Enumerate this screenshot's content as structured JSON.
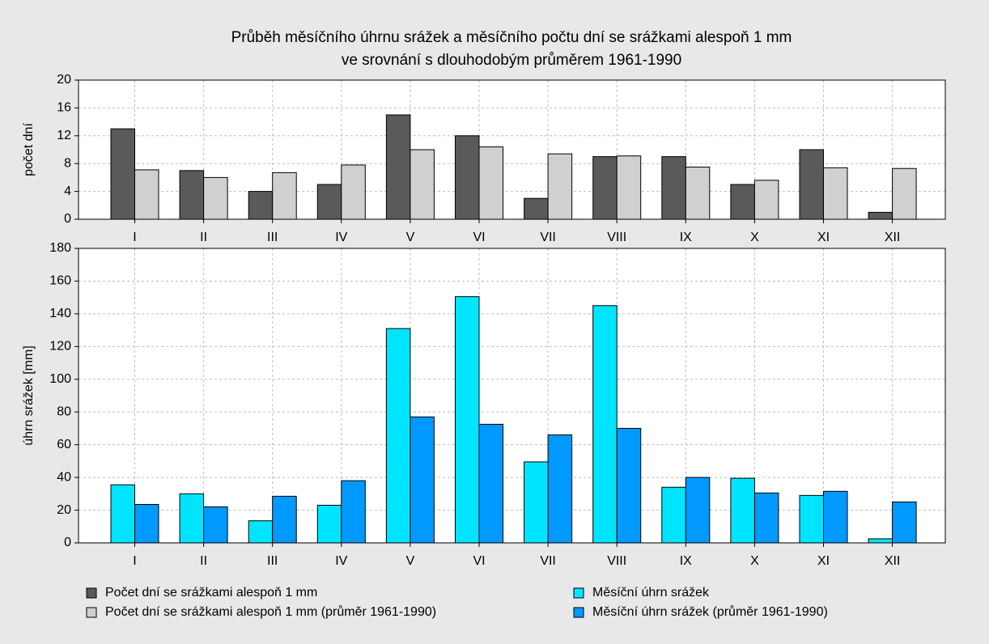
{
  "chart_data": [
    {
      "type": "bar",
      "title": [
        "Průběh měsíčního úhrnu srážek a měsíčního počtu dní se srážkami alespoň 1 mm",
        "ve srovnání s dlouhodobým průměrem 1961-1990"
      ],
      "ylabel": "počet dní",
      "categories": [
        "I",
        "II",
        "III",
        "IV",
        "V",
        "VI",
        "VII",
        "VIII",
        "IX",
        "X",
        "XI",
        "XII"
      ],
      "series": [
        {
          "name": "Počet dní se srážkami alespoň 1 mm",
          "color": "#5a5a5a",
          "values": [
            13,
            7,
            4,
            5,
            15,
            12,
            3,
            9,
            9,
            5,
            10,
            1
          ]
        },
        {
          "name": "Počet dní se srážkami alespoň 1 mm (průměr 1961-1990)",
          "color": "#d0d0d0",
          "values": [
            7.1,
            6,
            6.7,
            7.8,
            10,
            10.4,
            9.4,
            9.1,
            7.5,
            5.6,
            7.4,
            7.3
          ]
        }
      ],
      "ylim": [
        0,
        20
      ],
      "yticks": [
        0,
        4,
        8,
        12,
        16,
        20
      ],
      "grid": true
    },
    {
      "type": "bar",
      "ylabel": "úhrn srážek [mm]",
      "categories": [
        "I",
        "II",
        "III",
        "IV",
        "V",
        "VI",
        "VII",
        "VIII",
        "IX",
        "X",
        "XI",
        "XII"
      ],
      "series": [
        {
          "name": "Měsíční úhrn srážek",
          "color": "#00e5ff",
          "values": [
            35.5,
            30,
            13.5,
            23,
            131,
            150.5,
            49.5,
            145,
            34,
            39.5,
            29,
            2.5
          ]
        },
        {
          "name": "Měsíční úhrn srážek (průměr 1961-1990)",
          "color": "#0099ff",
          "values": [
            23.5,
            22,
            28.5,
            38,
            77,
            72.5,
            66,
            70,
            40,
            30.5,
            31.5,
            25
          ]
        }
      ],
      "ylim": [
        0,
        180
      ],
      "yticks": [
        0,
        20,
        40,
        60,
        80,
        100,
        120,
        140,
        160,
        180
      ],
      "grid": true
    }
  ]
}
